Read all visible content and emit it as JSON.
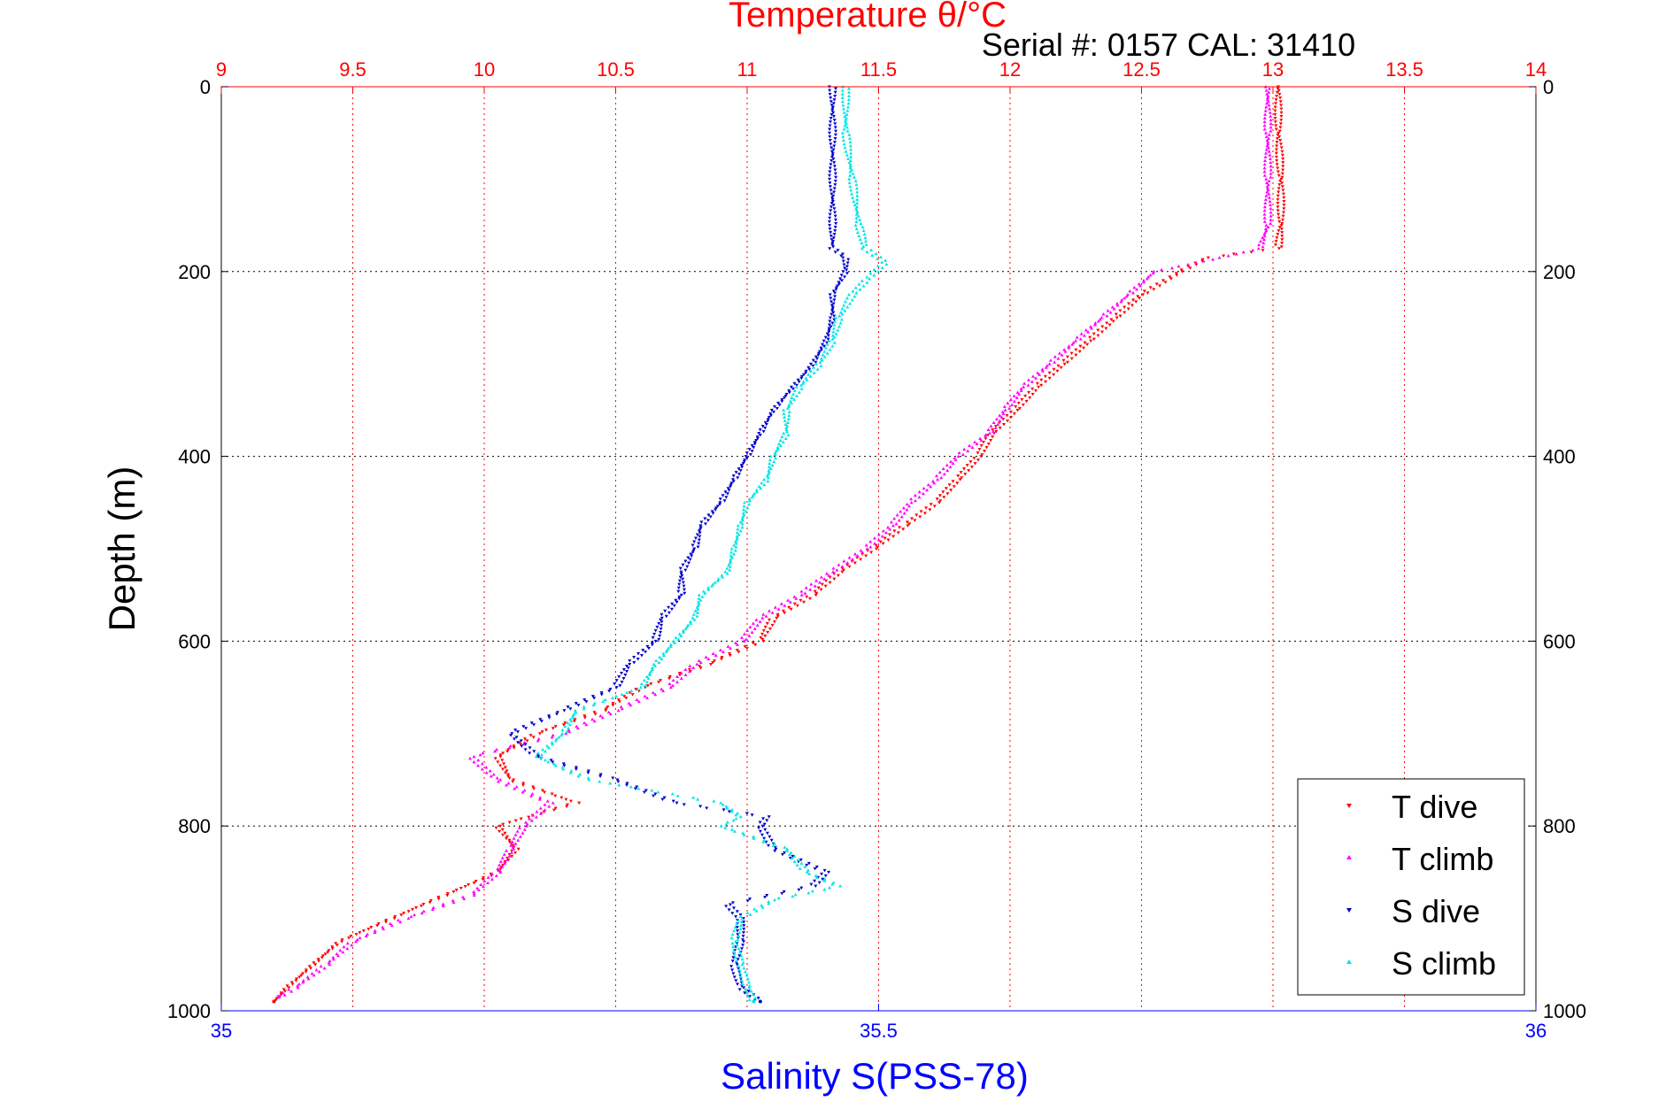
{
  "chart_data": {
    "type": "scatter",
    "title": "Temperature θ/°C",
    "subtitle": "Serial #: 0157  CAL: 31410",
    "ylabel": "Depth (m)",
    "xlabel_bottom": "Salinity S(PSS-78)",
    "y_reversed": true,
    "ylim": [
      0,
      1000
    ],
    "yticks": [
      "0",
      "200",
      "400",
      "600",
      "800",
      "1000"
    ],
    "x_top": {
      "quantity": "temperature",
      "lim": [
        9,
        14
      ],
      "ticks": [
        "9",
        "9.5",
        "10",
        "10.5",
        "11",
        "11.5",
        "12",
        "12.5",
        "13",
        "13.5",
        "14"
      ]
    },
    "x_bottom": {
      "quantity": "salinity",
      "lim": [
        35,
        36
      ],
      "ticks": [
        "35",
        "35.5",
        "36"
      ]
    },
    "grid": true,
    "legend_position": "bottom-right",
    "colors": {
      "title": "#ff0000",
      "top_axis": "#ff0000",
      "bottom_axis": "#0000ff",
      "t_dive": "#ff0000",
      "t_climb": "#ff00ff",
      "s_dive": "#0000cc",
      "s_climb": "#00e5e5"
    },
    "series": [
      {
        "name": "T dive",
        "axis": "top",
        "color": "#ff0000",
        "points": [
          [
            13.02,
            0
          ],
          [
            13.02,
            50
          ],
          [
            13.03,
            100
          ],
          [
            13.03,
            150
          ],
          [
            13.02,
            175
          ],
          [
            12.75,
            185
          ],
          [
            12.65,
            200
          ],
          [
            12.5,
            225
          ],
          [
            12.4,
            250
          ],
          [
            12.3,
            275
          ],
          [
            12.2,
            300
          ],
          [
            12.1,
            325
          ],
          [
            12.02,
            350
          ],
          [
            11.93,
            375
          ],
          [
            11.88,
            400
          ],
          [
            11.8,
            425
          ],
          [
            11.72,
            450
          ],
          [
            11.6,
            475
          ],
          [
            11.48,
            500
          ],
          [
            11.35,
            525
          ],
          [
            11.25,
            550
          ],
          [
            11.1,
            575
          ],
          [
            11.05,
            600
          ],
          [
            10.85,
            625
          ],
          [
            10.6,
            650
          ],
          [
            10.45,
            675
          ],
          [
            10.2,
            700
          ],
          [
            10.05,
            725
          ],
          [
            10.1,
            750
          ],
          [
            10.35,
            775
          ],
          [
            10.05,
            800
          ],
          [
            10.12,
            825
          ],
          [
            10.05,
            850
          ],
          [
            9.85,
            875
          ],
          [
            9.65,
            900
          ],
          [
            9.45,
            925
          ],
          [
            9.35,
            950
          ],
          [
            9.25,
            975
          ],
          [
            9.2,
            990
          ]
        ]
      },
      {
        "name": "T climb",
        "axis": "top",
        "color": "#ff00ff",
        "points": [
          [
            12.98,
            0
          ],
          [
            12.98,
            50
          ],
          [
            12.98,
            100
          ],
          [
            12.98,
            150
          ],
          [
            12.95,
            175
          ],
          [
            12.8,
            185
          ],
          [
            12.55,
            200
          ],
          [
            12.45,
            225
          ],
          [
            12.35,
            250
          ],
          [
            12.25,
            275
          ],
          [
            12.15,
            300
          ],
          [
            12.05,
            325
          ],
          [
            11.98,
            350
          ],
          [
            11.92,
            375
          ],
          [
            11.8,
            400
          ],
          [
            11.72,
            425
          ],
          [
            11.62,
            450
          ],
          [
            11.55,
            475
          ],
          [
            11.45,
            500
          ],
          [
            11.32,
            525
          ],
          [
            11.2,
            550
          ],
          [
            11.05,
            575
          ],
          [
            10.98,
            600
          ],
          [
            10.8,
            625
          ],
          [
            10.7,
            650
          ],
          [
            10.5,
            675
          ],
          [
            10.3,
            700
          ],
          [
            9.95,
            725
          ],
          [
            10.05,
            750
          ],
          [
            10.25,
            775
          ],
          [
            10.15,
            800
          ],
          [
            10.1,
            825
          ],
          [
            10.05,
            850
          ],
          [
            9.95,
            875
          ],
          [
            9.7,
            900
          ],
          [
            9.5,
            925
          ],
          [
            9.4,
            950
          ],
          [
            9.28,
            975
          ],
          [
            9.22,
            985
          ]
        ]
      },
      {
        "name": "S dive",
        "axis": "bottom",
        "color": "#0000cc",
        "points": [
          [
            35.465,
            0
          ],
          [
            35.465,
            50
          ],
          [
            35.465,
            100
          ],
          [
            35.465,
            150
          ],
          [
            35.465,
            175
          ],
          [
            35.475,
            185
          ],
          [
            35.475,
            200
          ],
          [
            35.465,
            225
          ],
          [
            35.465,
            250
          ],
          [
            35.46,
            275
          ],
          [
            35.45,
            300
          ],
          [
            35.435,
            325
          ],
          [
            35.42,
            350
          ],
          [
            35.41,
            375
          ],
          [
            35.4,
            400
          ],
          [
            35.39,
            425
          ],
          [
            35.38,
            450
          ],
          [
            35.365,
            475
          ],
          [
            35.36,
            500
          ],
          [
            35.35,
            525
          ],
          [
            35.35,
            550
          ],
          [
            35.335,
            575
          ],
          [
            35.33,
            600
          ],
          [
            35.31,
            625
          ],
          [
            35.3,
            650
          ],
          [
            35.26,
            675
          ],
          [
            35.22,
            700
          ],
          [
            35.24,
            725
          ],
          [
            35.3,
            750
          ],
          [
            35.345,
            775
          ],
          [
            35.415,
            790
          ],
          [
            35.41,
            800
          ],
          [
            35.42,
            825
          ],
          [
            35.46,
            850
          ],
          [
            35.45,
            865
          ],
          [
            35.385,
            885
          ],
          [
            35.395,
            900
          ],
          [
            35.395,
            925
          ],
          [
            35.39,
            950
          ],
          [
            35.395,
            975
          ],
          [
            35.41,
            990
          ]
        ]
      },
      {
        "name": "S climb",
        "axis": "bottom",
        "color": "#00e5e5",
        "points": [
          [
            35.475,
            0
          ],
          [
            35.475,
            50
          ],
          [
            35.48,
            100
          ],
          [
            35.485,
            150
          ],
          [
            35.49,
            175
          ],
          [
            35.505,
            190
          ],
          [
            35.49,
            210
          ],
          [
            35.48,
            225
          ],
          [
            35.47,
            250
          ],
          [
            35.465,
            275
          ],
          [
            35.455,
            300
          ],
          [
            35.44,
            325
          ],
          [
            35.43,
            350
          ],
          [
            35.43,
            375
          ],
          [
            35.42,
            400
          ],
          [
            35.415,
            425
          ],
          [
            35.4,
            450
          ],
          [
            35.395,
            475
          ],
          [
            35.39,
            500
          ],
          [
            35.385,
            525
          ],
          [
            35.365,
            550
          ],
          [
            35.36,
            575
          ],
          [
            35.345,
            600
          ],
          [
            35.33,
            625
          ],
          [
            35.32,
            650
          ],
          [
            35.27,
            675
          ],
          [
            35.26,
            700
          ],
          [
            35.24,
            725
          ],
          [
            35.28,
            750
          ],
          [
            35.38,
            775
          ],
          [
            35.395,
            790
          ],
          [
            35.38,
            800
          ],
          [
            35.43,
            825
          ],
          [
            35.445,
            850
          ],
          [
            35.47,
            865
          ],
          [
            35.42,
            880
          ],
          [
            35.395,
            900
          ],
          [
            35.39,
            925
          ],
          [
            35.395,
            950
          ],
          [
            35.4,
            975
          ],
          [
            35.405,
            990
          ]
        ]
      }
    ]
  }
}
